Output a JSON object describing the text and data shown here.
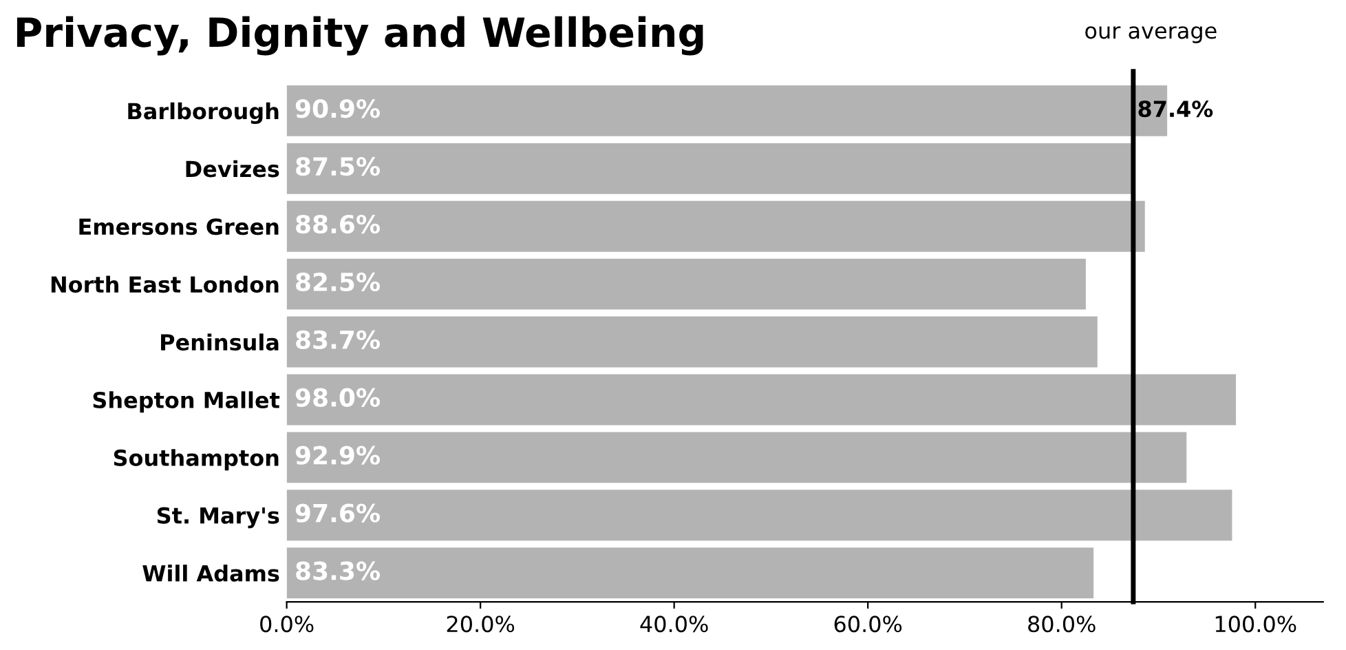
{
  "chart_data": {
    "type": "bar",
    "orientation": "horizontal",
    "title": "Privacy, Dignity and Wellbeing",
    "categories": [
      "Barlborough",
      "Devizes",
      "Emersons Green",
      "North East London",
      "Peninsula",
      "Shepton Mallet",
      "Southampton",
      "St. Mary's",
      "Will Adams"
    ],
    "values": [
      90.9,
      87.5,
      88.6,
      82.5,
      83.7,
      98.0,
      92.9,
      97.6,
      83.3
    ],
    "value_labels": [
      "90.9%",
      "87.5%",
      "88.6%",
      "82.5%",
      "83.7%",
      "98.0%",
      "92.9%",
      "97.6%",
      "83.3%"
    ],
    "color": "#b3b3b3",
    "xlim": [
      0,
      107
    ],
    "xticks": [
      {
        "value": 0,
        "label": "0.0%"
      },
      {
        "value": 20,
        "label": "20.0%"
      },
      {
        "value": 40,
        "label": "40.0%"
      },
      {
        "value": 60,
        "label": "60.0%"
      },
      {
        "value": 80,
        "label": "80.0%"
      },
      {
        "value": 100,
        "label": "100.0%"
      }
    ],
    "ref_lines": [
      {
        "axis": "x",
        "value": 87.4,
        "label": "87.4%",
        "color": "#000000"
      }
    ],
    "annotations": [
      "our average"
    ],
    "grid": false,
    "legend": false
  }
}
